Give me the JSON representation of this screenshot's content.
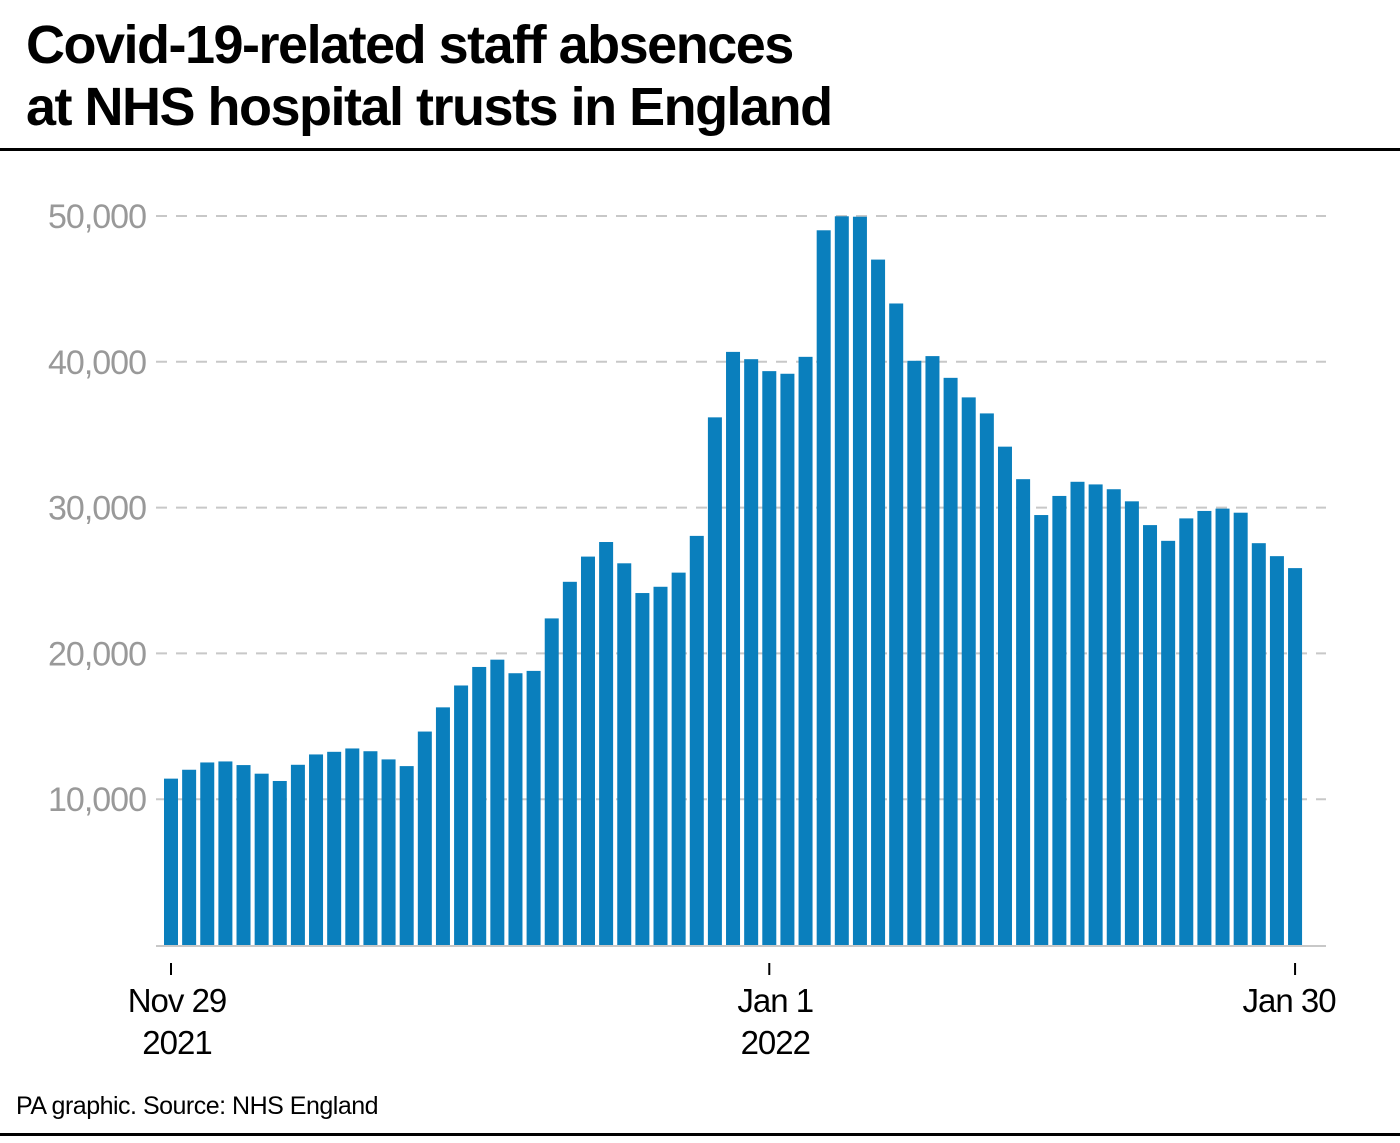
{
  "title_line1": "Covid-19-related staff absences",
  "title_line2": "at NHS hospital trusts in England",
  "source": "PA graphic. Source: NHS England",
  "colors": {
    "bar": "#0a7fbd",
    "grid": "#c8c8c8",
    "axis_text": "#999999"
  },
  "chart_data": {
    "type": "bar",
    "title": "Covid-19-related staff absences at NHS hospital trusts in England",
    "xlabel": "",
    "ylabel": "",
    "x_start": "2021-11-29",
    "x_end": "2022-01-30",
    "ylim": [
      0,
      50000
    ],
    "yticks": [
      10000,
      20000,
      30000,
      40000,
      50000
    ],
    "ytick_labels": [
      "10,000",
      "20,000",
      "30,000",
      "40,000",
      "50,000"
    ],
    "grid": true,
    "xticks": [
      {
        "index": 0,
        "line1": "Nov 29",
        "line2": "2021"
      },
      {
        "index": 33,
        "line1": "Jan 1",
        "line2": "2022"
      },
      {
        "index": 62,
        "line1": "Jan 30",
        "line2": ""
      }
    ],
    "series": [
      {
        "name": "Covid-19-related staff absences",
        "values": [
          11410,
          12020,
          12520,
          12590,
          12340,
          11750,
          11250,
          12360,
          13070,
          13250,
          13480,
          13290,
          12730,
          12270,
          14640,
          16300,
          17800,
          19070,
          19570,
          18640,
          18800,
          22400,
          24910,
          26640,
          27640,
          26180,
          24140,
          24570,
          25540,
          28060,
          36190,
          40680,
          40180,
          39360,
          39180,
          40340,
          49020,
          49980,
          49950,
          47010,
          44000,
          40070,
          40390,
          38900,
          37560,
          36460,
          34180,
          31950,
          29490,
          30800,
          31770,
          31590,
          31260,
          30430,
          28800,
          27720,
          29260,
          29770,
          29930,
          29650,
          27560,
          26670,
          25850
        ]
      }
    ]
  }
}
